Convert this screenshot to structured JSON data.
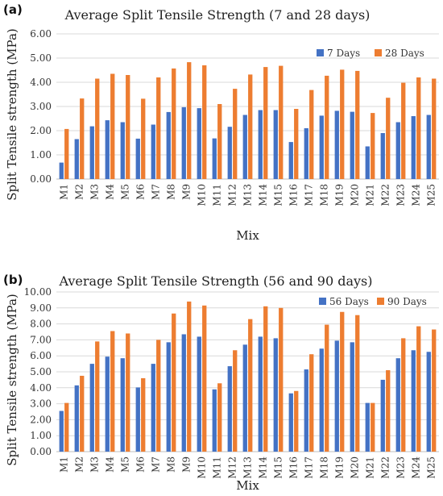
{
  "chart_data": [
    {
      "panel": "(a)",
      "type": "bar",
      "title": "Average Split Tensile Strength (7 and 28 days)",
      "xlabel": "Mix",
      "ylabel": "Split Tensile strength (MPa)",
      "ylim": [
        0,
        6
      ],
      "yticks": [
        "0.00",
        "1.00",
        "2.00",
        "3.00",
        "4.00",
        "5.00",
        "6.00"
      ],
      "grid": true,
      "legend": "top-right",
      "categories": [
        "M1",
        "M2",
        "M3",
        "M4",
        "M5",
        "M6",
        "M7",
        "M8",
        "M9",
        "M10",
        "M11",
        "M12",
        "M13",
        "M14",
        "M15",
        "M16",
        "M17",
        "M18",
        "M19",
        "M20",
        "M21",
        "M22",
        "M23",
        "M24",
        "M25"
      ],
      "series": [
        {
          "name": "7 Days",
          "color": "#4472C4",
          "values": [
            0.68,
            1.65,
            2.18,
            2.43,
            2.35,
            1.67,
            2.25,
            2.77,
            2.97,
            2.93,
            1.68,
            2.16,
            2.65,
            2.85,
            2.85,
            1.53,
            2.1,
            2.62,
            2.82,
            2.78,
            1.35,
            1.9,
            2.35,
            2.6,
            2.65
          ]
        },
        {
          "name": "28 Days",
          "color": "#ED7D31",
          "values": [
            2.07,
            3.33,
            4.15,
            4.35,
            4.3,
            3.32,
            4.2,
            4.57,
            4.83,
            4.7,
            3.1,
            3.73,
            4.32,
            4.63,
            4.68,
            2.9,
            3.68,
            4.27,
            4.52,
            4.47,
            2.73,
            3.36,
            3.98,
            4.2,
            4.15
          ]
        }
      ]
    },
    {
      "panel": "(b)",
      "type": "bar",
      "title": "Average Split Tensile Strength (56 and 90 days)",
      "xlabel": "Mix",
      "ylabel": "Split Tensile strength (MPa)",
      "ylim": [
        0,
        10
      ],
      "yticks": [
        "0.00",
        "1.00",
        "2.00",
        "3.00",
        "4.00",
        "5.00",
        "6.00",
        "7.00",
        "8.00",
        "9.00",
        "10.00"
      ],
      "grid": true,
      "legend": "top-right",
      "categories": [
        "M1",
        "M2",
        "M3",
        "M4",
        "M5",
        "M6",
        "M7",
        "M8",
        "M9",
        "M10",
        "M11",
        "M12",
        "M13",
        "M14",
        "M15",
        "M16",
        "M17",
        "M18",
        "M19",
        "M20",
        "M21",
        "M22",
        "M23",
        "M24",
        "M25"
      ],
      "series": [
        {
          "name": "56 Days",
          "color": "#4472C4",
          "values": [
            2.55,
            4.15,
            5.5,
            5.95,
            5.85,
            4.02,
            5.5,
            6.85,
            7.35,
            7.2,
            3.9,
            5.35,
            6.7,
            7.2,
            7.1,
            3.65,
            5.15,
            6.45,
            6.95,
            6.85,
            3.05,
            4.5,
            5.85,
            6.35,
            6.25
          ]
        },
        {
          "name": "90 Days",
          "color": "#ED7D31",
          "values": [
            3.05,
            4.75,
            6.9,
            7.55,
            7.4,
            4.6,
            7.0,
            8.65,
            9.4,
            9.15,
            4.28,
            6.35,
            8.3,
            9.1,
            9.0,
            3.8,
            6.1,
            7.95,
            8.75,
            8.55,
            3.05,
            5.1,
            7.1,
            7.85,
            7.65
          ]
        }
      ]
    }
  ]
}
